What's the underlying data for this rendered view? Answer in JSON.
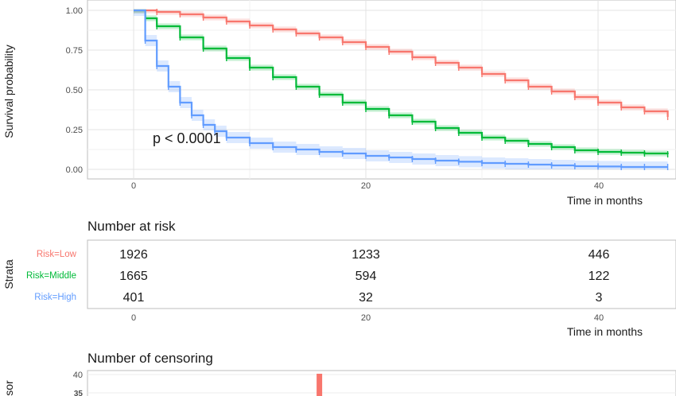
{
  "chart_data": [
    {
      "type": "line",
      "subtype": "kaplan-meier",
      "ylabel": "Survival probability",
      "xlabel": "Time in months",
      "xlim": [
        -2,
        46
      ],
      "ylim": [
        0,
        1
      ],
      "x_ticks": [
        "0",
        "20",
        "40"
      ],
      "y_ticks": [
        "0.00",
        "0.25",
        "0.50",
        "0.75",
        "1.00"
      ],
      "annotation": "p < 0.0001",
      "grid": true,
      "series": [
        {
          "color": "#F8766D",
          "x": [
            0,
            2,
            4,
            6,
            8,
            10,
            12,
            14,
            16,
            18,
            20,
            22,
            24,
            26,
            28,
            30,
            32,
            34,
            36,
            38,
            40,
            42,
            44,
            46
          ],
          "y": [
            1.0,
            0.99,
            0.975,
            0.955,
            0.93,
            0.905,
            0.88,
            0.855,
            0.83,
            0.8,
            0.77,
            0.74,
            0.705,
            0.67,
            0.64,
            0.6,
            0.56,
            0.52,
            0.49,
            0.455,
            0.42,
            0.39,
            0.365,
            0.33
          ]
        },
        {
          "color": "#00BA38",
          "x": [
            0,
            1,
            2,
            4,
            6,
            8,
            10,
            12,
            14,
            16,
            18,
            20,
            22,
            24,
            26,
            28,
            30,
            32,
            34,
            36,
            38,
            40,
            42,
            44,
            46
          ],
          "y": [
            1.0,
            0.95,
            0.9,
            0.83,
            0.76,
            0.7,
            0.64,
            0.58,
            0.52,
            0.47,
            0.42,
            0.38,
            0.34,
            0.3,
            0.26,
            0.23,
            0.2,
            0.18,
            0.16,
            0.14,
            0.12,
            0.11,
            0.105,
            0.1,
            0.095
          ]
        },
        {
          "color": "#619CFF",
          "x": [
            0,
            1,
            2,
            3,
            4,
            5,
            6,
            7,
            8,
            10,
            12,
            14,
            16,
            18,
            20,
            22,
            24,
            26,
            28,
            30,
            32,
            34,
            36,
            38,
            40,
            42,
            44,
            46
          ],
          "y": [
            1.0,
            0.81,
            0.65,
            0.52,
            0.42,
            0.34,
            0.28,
            0.24,
            0.2,
            0.165,
            0.14,
            0.125,
            0.11,
            0.1,
            0.085,
            0.075,
            0.065,
            0.055,
            0.048,
            0.04,
            0.035,
            0.03,
            0.025,
            0.02,
            0.018,
            0.015,
            0.015,
            0.015
          ]
        }
      ]
    },
    {
      "type": "table",
      "title": "Number at risk",
      "ylabel": "Strata",
      "xlabel": "Time in months",
      "x_ticks": [
        "0",
        "20",
        "40"
      ],
      "rows": [
        {
          "label": "Risk=Low",
          "color": "#F8766D",
          "values": [
            "1926",
            "1233",
            "446"
          ]
        },
        {
          "label": "Risk=Middle",
          "color": "#00BA38",
          "values": [
            "1665",
            "594",
            "122"
          ]
        },
        {
          "label": "Risk=High",
          "color": "#619CFF",
          "values": [
            "401",
            "32",
            "3"
          ]
        }
      ]
    },
    {
      "type": "bar",
      "title": "Number of censoring",
      "ylabel": "sor",
      "y_ticks": [
        "40",
        "35"
      ],
      "bars": [
        {
          "x": 16,
          "value": 40,
          "color": "#F8766D"
        }
      ]
    }
  ]
}
